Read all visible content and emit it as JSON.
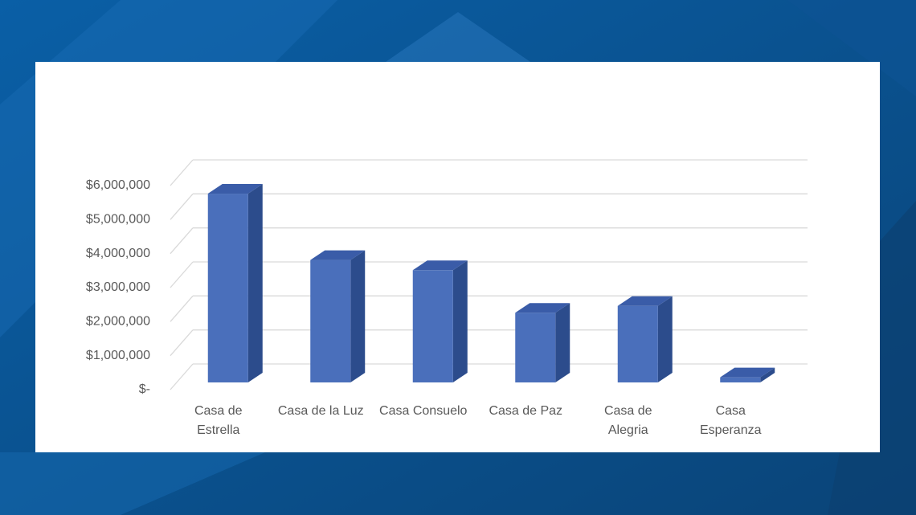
{
  "chart_data": {
    "type": "bar3d",
    "categories": [
      "Casa de Estrella",
      "Casa de la Luz",
      "Casa Consuelo",
      "Casa de Paz",
      "Casa de Alegria",
      "Casa Esperanza"
    ],
    "values": [
      5550000,
      3600000,
      3300000,
      2050000,
      2250000,
      150000
    ],
    "color": "#4a6fbb",
    "ylim": [
      0,
      6000000
    ],
    "yticks": [
      {
        "value": 0,
        "label": "$-"
      },
      {
        "value": 1000000,
        "label": "$1,000,000"
      },
      {
        "value": 2000000,
        "label": "$2,000,000"
      },
      {
        "value": 3000000,
        "label": "$3,000,000"
      },
      {
        "value": 4000000,
        "label": "$4,000,000"
      },
      {
        "value": 5000000,
        "label": "$5,000,000"
      },
      {
        "value": 6000000,
        "label": "$6,000,000"
      }
    ],
    "grid": true
  }
}
